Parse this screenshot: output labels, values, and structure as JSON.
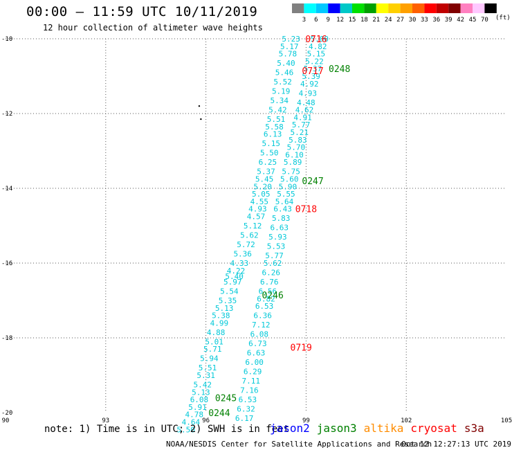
{
  "title": "00:00 – 11:59 UTC 10/11/2019",
  "subtitle": "12 hour collection of altimeter wave heights",
  "colorbar": {
    "unit": "(ft)",
    "labels": [
      "3",
      "6",
      "9",
      "12",
      "15",
      "18",
      "21",
      "24",
      "27",
      "30",
      "33",
      "36",
      "39",
      "42",
      "45",
      "70"
    ],
    "colors": [
      "#808080",
      "#00ffff",
      "#00c8ff",
      "#0000ff",
      "#00c8c8",
      "#00e000",
      "#00a000",
      "#ffff00",
      "#ffd000",
      "#ffa000",
      "#ff6000",
      "#ff0000",
      "#c00000",
      "#800000",
      "#ff80c0",
      "#ffc8ff",
      "#000000"
    ]
  },
  "note": "note:  1) Time is in UTC;  2) SWH is in feet",
  "satellites": [
    {
      "name": "jason2",
      "color": "#0000ff"
    },
    {
      "name": "jason3",
      "color": "#008000"
    },
    {
      "name": "altika",
      "color": "#ff8c00"
    },
    {
      "name": "cryosat",
      "color": "#ff0000"
    },
    {
      "name": "s3a",
      "color": "#800000"
    }
  ],
  "credit": "NOAA/NESDIS Center for Satellite Applications and Research",
  "credit_time": "Oct 12 12:27:13 UTC 2019",
  "chart_data": {
    "type": "scatter",
    "xlim": [
      90,
      105
    ],
    "ylim": [
      -20,
      -10
    ],
    "x_ticks": [
      90,
      93,
      96,
      99,
      102,
      105
    ],
    "y_ticks": [
      -10,
      -12,
      -14,
      -16,
      -18,
      -20
    ],
    "grid": true,
    "value_color": "#00c8d8",
    "series": [
      {
        "name": "track A",
        "points": [
          {
            "x": 98.55,
            "y": -10.0,
            "v": "5.23"
          },
          {
            "x": 98.5,
            "y": -10.2,
            "v": "5.17"
          },
          {
            "x": 98.45,
            "y": -10.4,
            "v": "5.78"
          },
          {
            "x": 98.4,
            "y": -10.65,
            "v": "5.40"
          },
          {
            "x": 98.35,
            "y": -10.9,
            "v": "5.46"
          },
          {
            "x": 98.3,
            "y": -11.15,
            "v": "5.52"
          },
          {
            "x": 98.25,
            "y": -11.4,
            "v": "5.19"
          },
          {
            "x": 98.2,
            "y": -11.65,
            "v": "5.34"
          },
          {
            "x": 98.15,
            "y": -11.9,
            "v": "5.42"
          },
          {
            "x": 98.1,
            "y": -12.15,
            "v": "5.51"
          },
          {
            "x": 98.05,
            "y": -12.35,
            "v": "5.58"
          },
          {
            "x": 98.0,
            "y": -12.55,
            "v": "6.13"
          },
          {
            "x": 97.95,
            "y": -12.8,
            "v": "5.15"
          },
          {
            "x": 97.9,
            "y": -13.05,
            "v": "5.50"
          },
          {
            "x": 97.85,
            "y": -13.3,
            "v": "6.25"
          },
          {
            "x": 97.8,
            "y": -13.55,
            "v": "5.37"
          },
          {
            "x": 97.75,
            "y": -13.75,
            "v": "5.45"
          },
          {
            "x": 97.7,
            "y": -13.95,
            "v": "5.20"
          },
          {
            "x": 97.65,
            "y": -14.15,
            "v": "5.05"
          },
          {
            "x": 97.6,
            "y": -14.35,
            "v": "4.55"
          },
          {
            "x": 97.55,
            "y": -14.55,
            "v": "4.93"
          },
          {
            "x": 97.5,
            "y": -14.75,
            "v": "4.57"
          },
          {
            "x": 97.4,
            "y": -15.0,
            "v": "5.12"
          },
          {
            "x": 97.3,
            "y": -15.25,
            "v": "5.62"
          },
          {
            "x": 97.2,
            "y": -15.5,
            "v": "5.72"
          },
          {
            "x": 97.1,
            "y": -15.75,
            "v": "5.36"
          },
          {
            "x": 97.0,
            "y": -16.0,
            "v": "4.33"
          },
          {
            "x": 96.9,
            "y": -16.2,
            "v": "4.22"
          },
          {
            "x": 96.85,
            "y": -16.35,
            "v": "5.40"
          },
          {
            "x": 96.8,
            "y": -16.5,
            "v": "5.97"
          },
          {
            "x": 96.7,
            "y": -16.75,
            "v": "5.54"
          },
          {
            "x": 96.65,
            "y": -17.0,
            "v": "5.35"
          },
          {
            "x": 96.55,
            "y": -17.2,
            "v": "5.13"
          },
          {
            "x": 96.45,
            "y": -17.4,
            "v": "5.38"
          },
          {
            "x": 96.4,
            "y": -17.6,
            "v": "4.99"
          },
          {
            "x": 96.3,
            "y": -17.85,
            "v": "4.88"
          },
          {
            "x": 96.25,
            "y": -18.1,
            "v": "5.01"
          },
          {
            "x": 96.2,
            "y": -18.3,
            "v": "5.71"
          },
          {
            "x": 96.1,
            "y": -18.55,
            "v": "5.94"
          },
          {
            "x": 96.05,
            "y": -18.8,
            "v": "5.51"
          },
          {
            "x": 96.0,
            "y": -19.0,
            "v": "5.31"
          },
          {
            "x": 95.9,
            "y": -19.25,
            "v": "5.42"
          },
          {
            "x": 95.85,
            "y": -19.45,
            "v": "5.13"
          },
          {
            "x": 95.8,
            "y": -19.65,
            "v": "6.08"
          },
          {
            "x": 95.75,
            "y": -19.85,
            "v": "5.91"
          },
          {
            "x": 95.65,
            "y": -20.05,
            "v": "4.78"
          },
          {
            "x": 95.55,
            "y": -20.25,
            "v": "4.64"
          },
          {
            "x": 95.4,
            "y": -20.45,
            "v": "5.50"
          }
        ]
      },
      {
        "name": "track B",
        "points": [
          {
            "x": 99.4,
            "y": -10.0,
            "v": "5.00"
          },
          {
            "x": 99.35,
            "y": -10.2,
            "v": "4.82"
          },
          {
            "x": 99.3,
            "y": -10.4,
            "v": "5.15"
          },
          {
            "x": 99.25,
            "y": -10.6,
            "v": "5.22"
          },
          {
            "x": 99.2,
            "y": -10.8,
            "v": "5.37"
          },
          {
            "x": 99.15,
            "y": -11.0,
            "v": "5.39"
          },
          {
            "x": 99.1,
            "y": -11.2,
            "v": "4.92"
          },
          {
            "x": 99.05,
            "y": -11.45,
            "v": "4.93"
          },
          {
            "x": 99.0,
            "y": -11.7,
            "v": "4.48"
          },
          {
            "x": 98.95,
            "y": -11.9,
            "v": "4.62"
          },
          {
            "x": 98.9,
            "y": -12.1,
            "v": "4.91"
          },
          {
            "x": 98.85,
            "y": -12.3,
            "v": "5.77"
          },
          {
            "x": 98.8,
            "y": -12.5,
            "v": "5.21"
          },
          {
            "x": 98.75,
            "y": -12.7,
            "v": "5.83"
          },
          {
            "x": 98.7,
            "y": -12.9,
            "v": "5.70"
          },
          {
            "x": 98.65,
            "y": -13.1,
            "v": "6.10"
          },
          {
            "x": 98.6,
            "y": -13.3,
            "v": "5.89"
          },
          {
            "x": 98.55,
            "y": -13.55,
            "v": "5.75"
          },
          {
            "x": 98.5,
            "y": -13.75,
            "v": "5.60"
          },
          {
            "x": 98.45,
            "y": -13.95,
            "v": "5.90"
          },
          {
            "x": 98.4,
            "y": -14.15,
            "v": "5.55"
          },
          {
            "x": 98.35,
            "y": -14.35,
            "v": "5.64"
          },
          {
            "x": 98.3,
            "y": -14.55,
            "v": "6.43"
          },
          {
            "x": 98.25,
            "y": -14.8,
            "v": "5.83"
          },
          {
            "x": 98.2,
            "y": -15.05,
            "v": "6.63"
          },
          {
            "x": 98.15,
            "y": -15.3,
            "v": "5.93"
          },
          {
            "x": 98.1,
            "y": -15.55,
            "v": "5.53"
          },
          {
            "x": 98.05,
            "y": -15.8,
            "v": "5.77"
          },
          {
            "x": 98.0,
            "y": -16.0,
            "v": "5.62"
          },
          {
            "x": 97.95,
            "y": -16.25,
            "v": "6.26"
          },
          {
            "x": 97.9,
            "y": -16.5,
            "v": "6.76"
          },
          {
            "x": 97.85,
            "y": -16.75,
            "v": "6.56"
          },
          {
            "x": 97.8,
            "y": -16.95,
            "v": "6.82"
          },
          {
            "x": 97.75,
            "y": -17.15,
            "v": "6.53"
          },
          {
            "x": 97.7,
            "y": -17.4,
            "v": "6.36"
          },
          {
            "x": 97.65,
            "y": -17.65,
            "v": "7.12"
          },
          {
            "x": 97.6,
            "y": -17.9,
            "v": "6.08"
          },
          {
            "x": 97.55,
            "y": -18.15,
            "v": "6.73"
          },
          {
            "x": 97.5,
            "y": -18.4,
            "v": "6.63"
          },
          {
            "x": 97.45,
            "y": -18.65,
            "v": "6.00"
          },
          {
            "x": 97.4,
            "y": -18.9,
            "v": "6.29"
          },
          {
            "x": 97.35,
            "y": -19.15,
            "v": "7.11"
          },
          {
            "x": 97.3,
            "y": -19.4,
            "v": "7.16"
          },
          {
            "x": 97.25,
            "y": -19.65,
            "v": "6.53"
          },
          {
            "x": 97.2,
            "y": -19.9,
            "v": "6.32"
          },
          {
            "x": 97.15,
            "y": -20.15,
            "v": "6.17"
          }
        ]
      }
    ],
    "time_labels": [
      {
        "x": 99.3,
        "y": -10.0,
        "text": "0716",
        "color": "#ff0000"
      },
      {
        "x": 99.2,
        "y": -10.85,
        "text": "0717",
        "color": "#ff0000"
      },
      {
        "x": 100.0,
        "y": -10.8,
        "text": "0248",
        "color": "#008000"
      },
      {
        "x": 99.2,
        "y": -13.8,
        "text": "0247",
        "color": "#008000"
      },
      {
        "x": 99.0,
        "y": -14.55,
        "text": "0718",
        "color": "#ff0000"
      },
      {
        "x": 98.0,
        "y": -16.85,
        "text": "0246",
        "color": "#008000"
      },
      {
        "x": 98.85,
        "y": -18.25,
        "text": "0719",
        "color": "#ff0000"
      },
      {
        "x": 96.6,
        "y": -19.6,
        "text": "0245",
        "color": "#008000"
      },
      {
        "x": 96.4,
        "y": -20.0,
        "text": "0244",
        "color": "#008000"
      }
    ],
    "island_markers": [
      {
        "x": 95.8,
        "y": -11.8
      },
      {
        "x": 95.85,
        "y": -12.15
      }
    ]
  }
}
